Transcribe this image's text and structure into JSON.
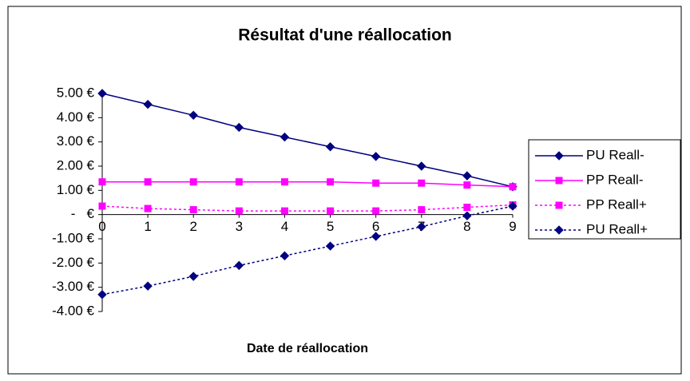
{
  "chart_data": {
    "type": "line",
    "title": "Résultat d'une réallocation",
    "x_label": "Date de réallocation",
    "x": [
      0,
      1,
      2,
      3,
      4,
      5,
      6,
      7,
      8,
      9
    ],
    "xlim": [
      0,
      9
    ],
    "xticks": [
      0,
      1,
      2,
      3,
      4,
      5,
      6,
      7,
      8,
      9
    ],
    "ylim": [
      -4,
      5
    ],
    "yticks": [
      {
        "value": 5,
        "label": "5.00 €"
      },
      {
        "value": 4,
        "label": "4.00 €"
      },
      {
        "value": 3,
        "label": "3.00 €"
      },
      {
        "value": 2,
        "label": "2.00 €"
      },
      {
        "value": 1,
        "label": "1.00 €"
      },
      {
        "value": 0,
        "label": "-   €"
      },
      {
        "value": -1,
        "label": "-1.00 €"
      },
      {
        "value": -2,
        "label": "-2.00 €"
      },
      {
        "value": -3,
        "label": "-3.00 €"
      },
      {
        "value": -4,
        "label": "-4.00 €"
      }
    ],
    "grid": false,
    "legend": "right",
    "series": [
      {
        "name": "PU Reall-",
        "color": "#000080",
        "style": "solid",
        "marker": "diamond",
        "values": [
          5.0,
          4.55,
          4.1,
          3.6,
          3.2,
          2.8,
          2.4,
          2.0,
          1.6,
          1.15
        ]
      },
      {
        "name": "PP Reall-",
        "color": "#ff00ff",
        "style": "solid",
        "marker": "square",
        "values": [
          1.35,
          1.35,
          1.35,
          1.35,
          1.35,
          1.35,
          1.3,
          1.3,
          1.22,
          1.15
        ]
      },
      {
        "name": "PP Reall+",
        "color": "#ff00ff",
        "style": "dotted",
        "marker": "square",
        "values": [
          0.35,
          0.25,
          0.2,
          0.15,
          0.15,
          0.15,
          0.15,
          0.2,
          0.3,
          0.4
        ]
      },
      {
        "name": "PU Reall+",
        "color": "#000080",
        "style": "dotted",
        "marker": "diamond",
        "values": [
          -3.3,
          -2.95,
          -2.55,
          -2.1,
          -1.7,
          -1.3,
          -0.9,
          -0.5,
          -0.05,
          0.35
        ]
      }
    ]
  }
}
